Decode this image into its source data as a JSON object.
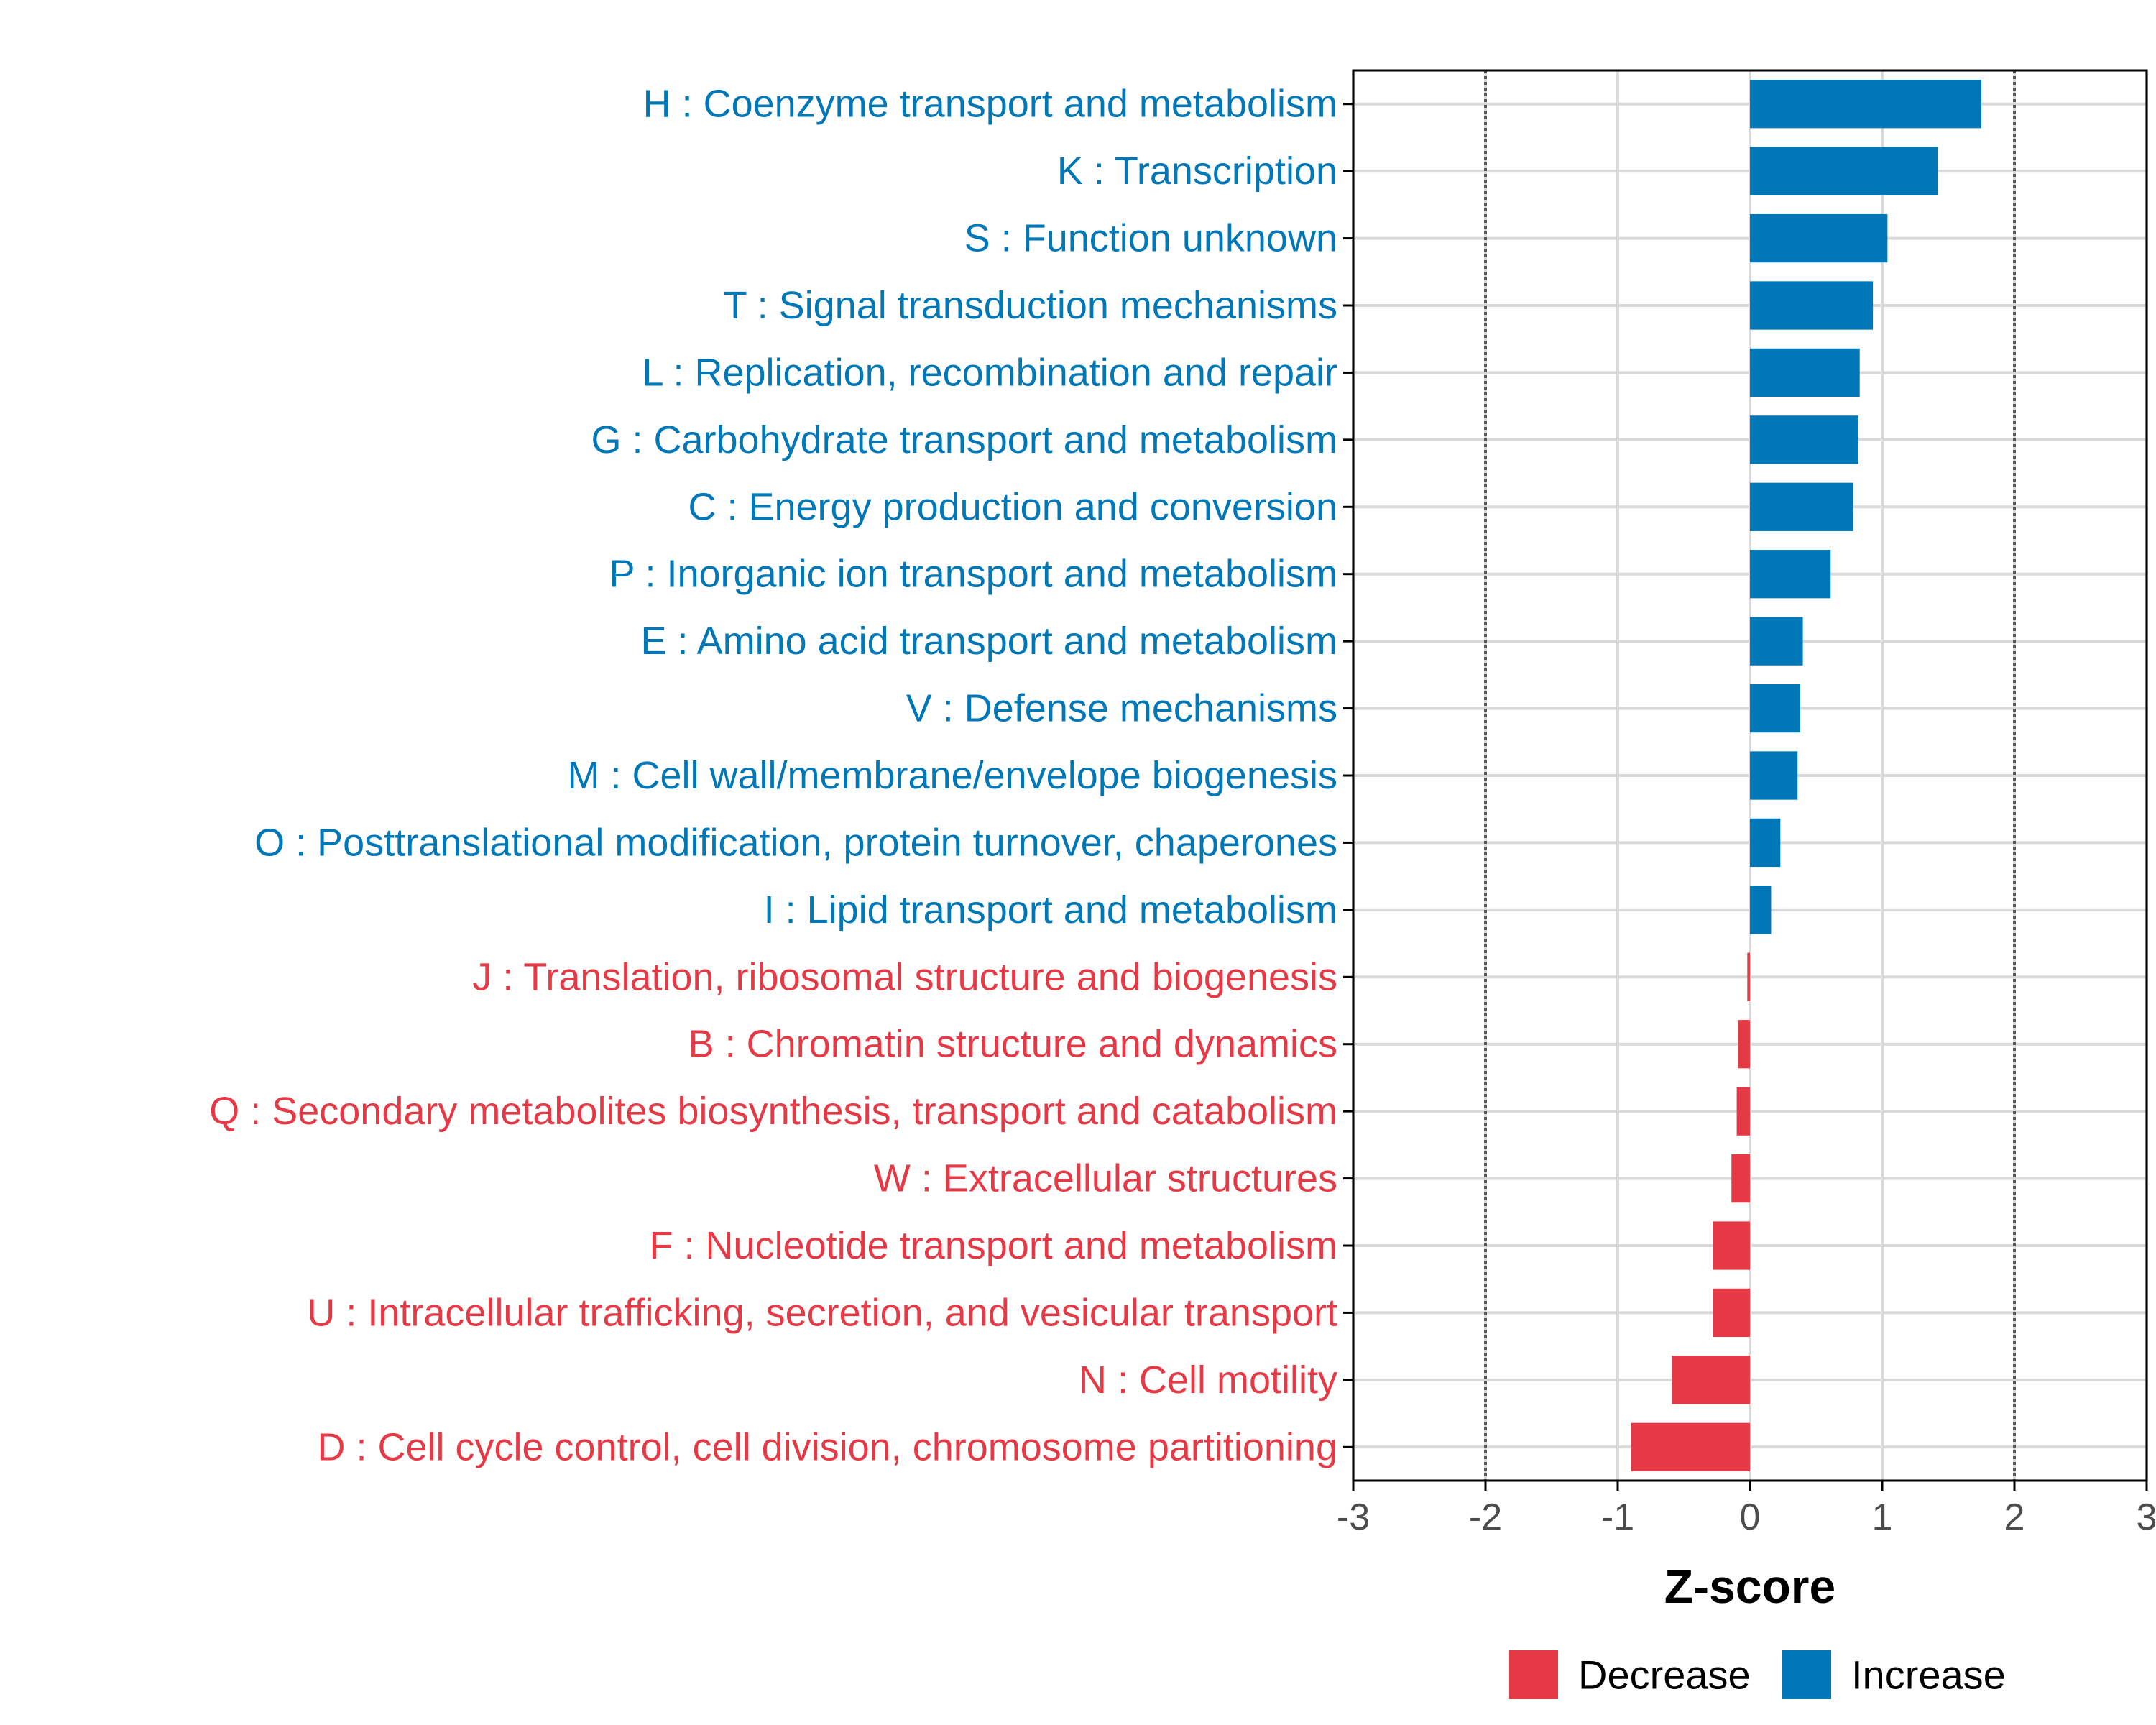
{
  "chart_data": {
    "type": "bar",
    "orientation": "horizontal",
    "xlabel": "Z-score",
    "ylabel": "",
    "xlim": [
      -3,
      3
    ],
    "xticks": [
      -3,
      -2,
      -1,
      0,
      1,
      2,
      3
    ],
    "xtick_labels": [
      "-3",
      "-2",
      "-1",
      "0",
      "1",
      "2",
      "3"
    ],
    "reference_lines": [
      -2,
      2
    ],
    "categories": [
      "H : Coenzyme transport and metabolism",
      "K : Transcription",
      "S : Function unknown",
      "T : Signal transduction mechanisms",
      "L : Replication, recombination and repair",
      "G : Carbohydrate transport and metabolism",
      "C : Energy production and conversion",
      "P : Inorganic ion transport and metabolism",
      "E : Amino acid transport and metabolism",
      "V : Defense mechanisms",
      "M : Cell wall/membrane/envelope biogenesis",
      "O : Posttranslational modification, protein turnover, chaperones",
      "I : Lipid transport and metabolism",
      "J : Translation, ribosomal structure and biogenesis",
      "B : Chromatin structure and dynamics",
      "Q : Secondary metabolites biosynthesis, transport and catabolism",
      "W : Extracellular structures",
      "F : Nucleotide transport and metabolism",
      "U : Intracellular trafficking, secretion, and vesicular transport",
      "N : Cell motility",
      "D : Cell cycle control, cell division, chromosome partitioning"
    ],
    "values": [
      1.75,
      1.42,
      1.04,
      0.93,
      0.83,
      0.82,
      0.78,
      0.61,
      0.4,
      0.38,
      0.36,
      0.23,
      0.16,
      -0.02,
      -0.09,
      -0.1,
      -0.14,
      -0.28,
      -0.28,
      -0.59,
      -0.9
    ],
    "legend": {
      "position": "bottom",
      "entries": [
        {
          "label": "Decrease",
          "color": "#e63946"
        },
        {
          "label": "Increase",
          "color": "#0077b6"
        }
      ]
    },
    "colors": {
      "increase": "#0077b6",
      "decrease": "#e63946",
      "grid": "#d9d9d9",
      "reference_line": "#555555",
      "axis": "#000000"
    }
  }
}
